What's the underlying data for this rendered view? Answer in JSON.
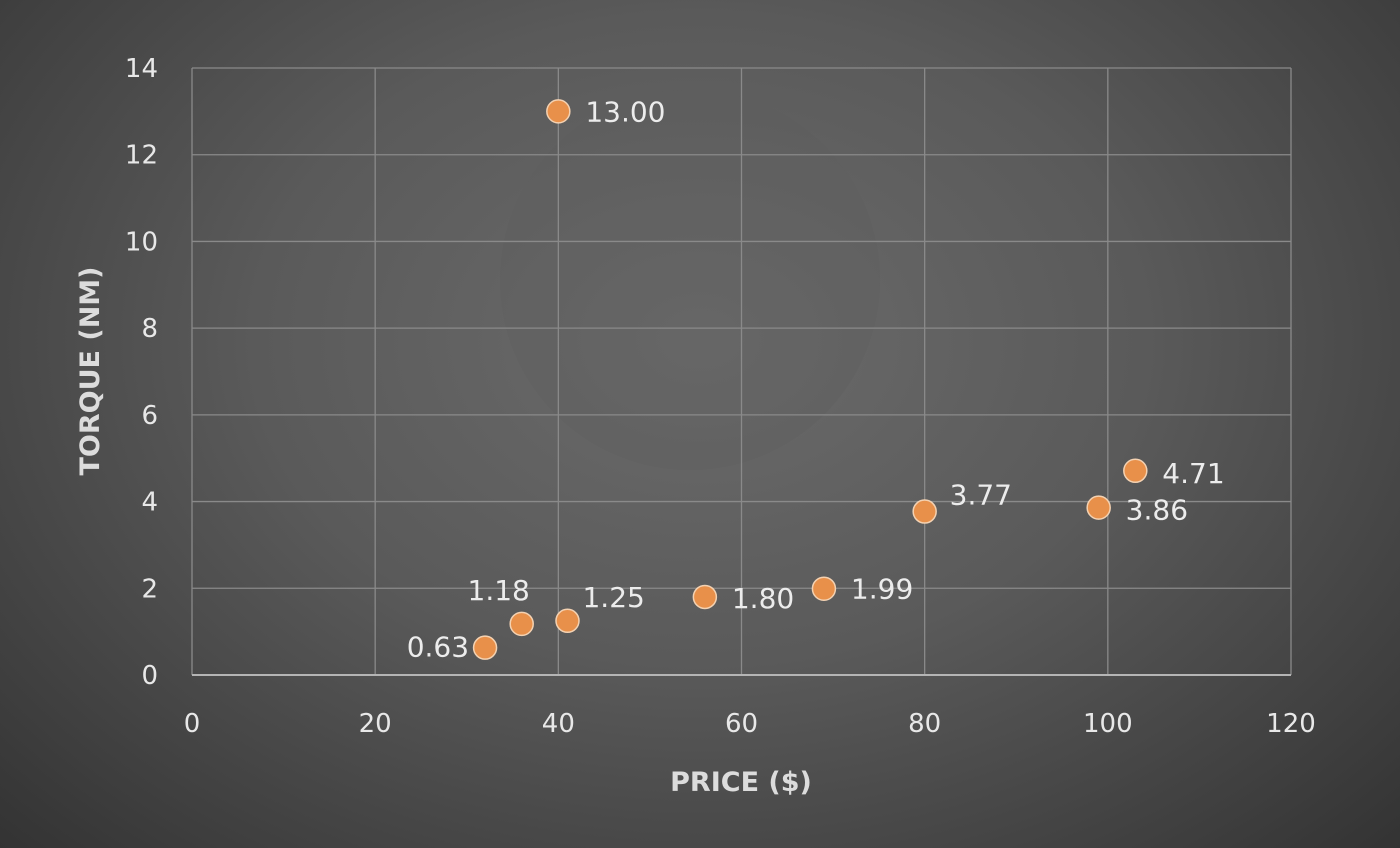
{
  "chart_data": {
    "type": "scatter",
    "title": "",
    "xlabel": "PRICE ($)",
    "ylabel": "TORQUE (NM)",
    "xlim": [
      0,
      120
    ],
    "ylim": [
      0,
      14
    ],
    "x_ticks": [
      "0",
      "20",
      "40",
      "60",
      "80",
      "100",
      "120"
    ],
    "y_ticks": [
      "0",
      "2",
      "4",
      "6",
      "8",
      "10",
      "12",
      "14"
    ],
    "grid": true,
    "legend": "none",
    "colors": {
      "marker": "#e8904a",
      "marker_edge": "#f4d2b2"
    },
    "series": [
      {
        "points": [
          {
            "x": 32,
            "y": 0.63,
            "label": "0.63"
          },
          {
            "x": 36,
            "y": 1.18,
            "label": "1.18"
          },
          {
            "x": 41,
            "y": 1.25,
            "label": "1.25"
          },
          {
            "x": 40,
            "y": 13.0,
            "label": "13.00"
          },
          {
            "x": 56,
            "y": 1.8,
            "label": "1.80"
          },
          {
            "x": 69,
            "y": 1.99,
            "label": "1.99"
          },
          {
            "x": 80,
            "y": 3.77,
            "label": "3.77"
          },
          {
            "x": 99,
            "y": 3.86,
            "label": "3.86"
          },
          {
            "x": 103,
            "y": 4.71,
            "label": "4.71"
          }
        ]
      }
    ]
  }
}
